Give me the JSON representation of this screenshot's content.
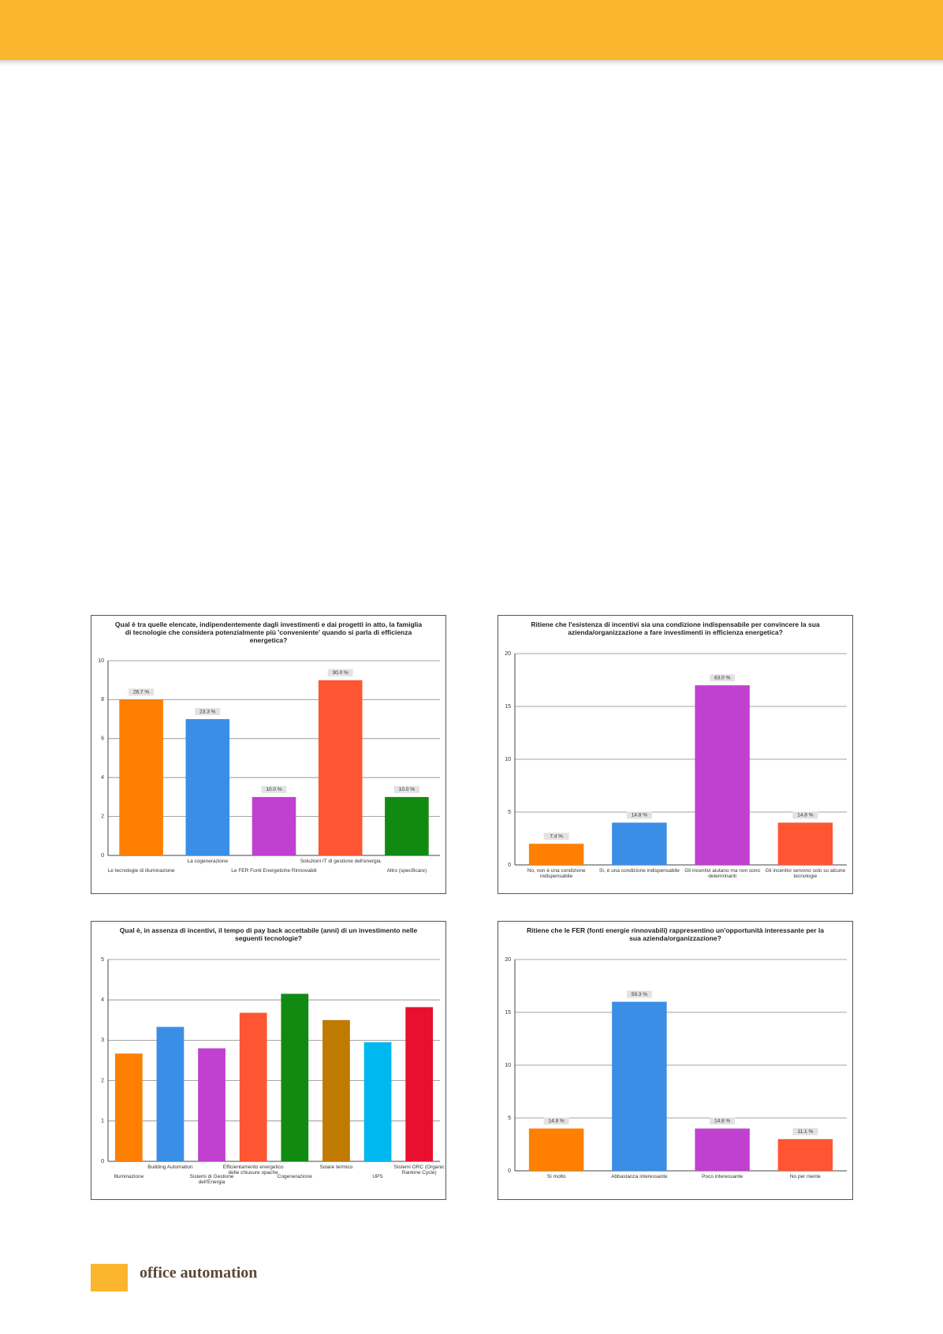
{
  "chart_data": [
    {
      "type": "bar",
      "title": "Qual è tra quelle elencate, indipendentemente dagli investimenti e dai progetti in atto, la famiglia di tecnologie che considera potenzialmente più 'conveniente' quando si parla di efficienza energetica?",
      "categories": [
        "Le tecnologie di illuminazione",
        "La cogenerazione",
        "Le FER Fonti Energetiche Rinnovabili",
        "Soluzioni IT di gestione dell'energia",
        "Altro (specificare)"
      ],
      "values": [
        8,
        7,
        3,
        9,
        3
      ],
      "value_labels": [
        "26.7 %",
        "23.3 %",
        "10.0 %",
        "30.0 %",
        "10.0 %"
      ],
      "colors": [
        "#ff7f00",
        "#3a8ee6",
        "#c040d0",
        "#ff5533",
        "#118a11"
      ],
      "ylim": [
        0,
        10
      ],
      "yticks": [
        0,
        2,
        4,
        6,
        8,
        10
      ],
      "grid": true
    },
    {
      "type": "bar",
      "title": "Ritiene che l'esistenza di incentivi sia una condizione indispensabile per convincere la sua azienda/organizzazione a fare investimenti in efficienza energetica?",
      "categories": [
        "No, non è una condizione indispensabile",
        "Sì, è una condizione indispensabile",
        "Gli incentivi aiutano ma non sono determinanti",
        "Gli incentivi servono solo su alcune tecnologie"
      ],
      "values": [
        2,
        4,
        17,
        4
      ],
      "value_labels": [
        "7.4 %",
        "14.8 %",
        "63.0 %",
        "14.8 %"
      ],
      "colors": [
        "#ff7f00",
        "#3a8ee6",
        "#c040d0",
        "#ff5533"
      ],
      "ylim": [
        0,
        20
      ],
      "yticks": [
        0,
        5,
        10,
        15,
        20
      ],
      "grid": true
    },
    {
      "type": "bar",
      "title": "Qual è, in assenza di incentivi, il tempo di pay back accettabile (anni) di un investimento nelle seguenti tecnologie?",
      "categories": [
        "Illuminazione",
        "Building Automation",
        "Sistemi di Gestione dell'Energia",
        "Efficientamento energetico delle chiusure opache",
        "Cogenerazione",
        "Solare termico",
        "UPS",
        "Sistemi ORC (Organic Rankine Cycle)"
      ],
      "values": [
        2.67,
        3.33,
        2.8,
        3.68,
        4.15,
        3.5,
        2.95,
        3.82
      ],
      "colors": [
        "#ff7f00",
        "#3a8ee6",
        "#c040d0",
        "#ff5533",
        "#118a11",
        "#c07a00",
        "#00b8f0",
        "#e8102e"
      ],
      "ylim": [
        0,
        5
      ],
      "yticks": [
        0,
        1,
        2,
        3,
        4,
        5
      ],
      "grid": true
    },
    {
      "type": "bar",
      "title": "Ritiene che le FER (fonti energie rinnovabili) rappresentino un'opportunità interessante per la sua azienda/organizzazione?",
      "categories": [
        "Sì molto",
        "Abbastanza interessante",
        "Poco interessante",
        "No per niente"
      ],
      "values": [
        4,
        16,
        4,
        3
      ],
      "value_labels": [
        "14.8 %",
        "59.3 %",
        "14.8 %",
        "11.1 %"
      ],
      "colors": [
        "#ff7f00",
        "#3a8ee6",
        "#c040d0",
        "#ff5533"
      ],
      "ylim": [
        0,
        20
      ],
      "yticks": [
        0,
        5,
        10,
        15,
        20
      ],
      "grid": true
    }
  ],
  "footer": "office automation"
}
